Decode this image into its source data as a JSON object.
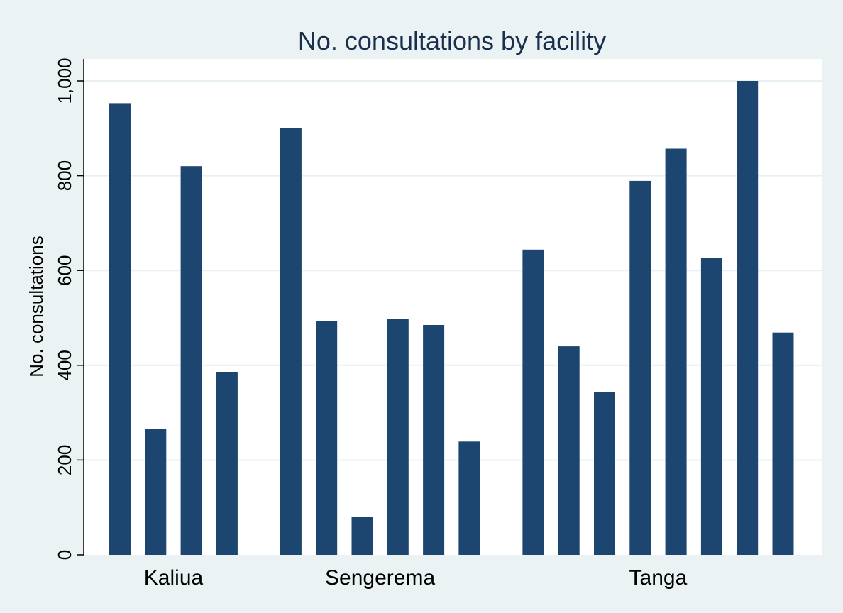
{
  "chart_data": {
    "type": "bar",
    "title": "No. consultations by facility",
    "xlabel": "",
    "ylabel": "No. consultations",
    "ylim": [
      0,
      1000
    ],
    "yticks": [
      "0",
      "200",
      "400",
      "600",
      "800",
      "1,000"
    ],
    "grid": true,
    "legend": "none",
    "bar_color": "#1c4670",
    "groups": [
      {
        "label": "Kaliua",
        "values": [
          953,
          266,
          820,
          386
        ]
      },
      {
        "label": "Sengerema",
        "values": [
          901,
          494,
          80,
          497,
          485,
          239
        ]
      },
      {
        "label": "Tanga",
        "values": [
          644,
          440,
          343,
          789,
          857,
          626,
          1000,
          469
        ]
      }
    ]
  }
}
